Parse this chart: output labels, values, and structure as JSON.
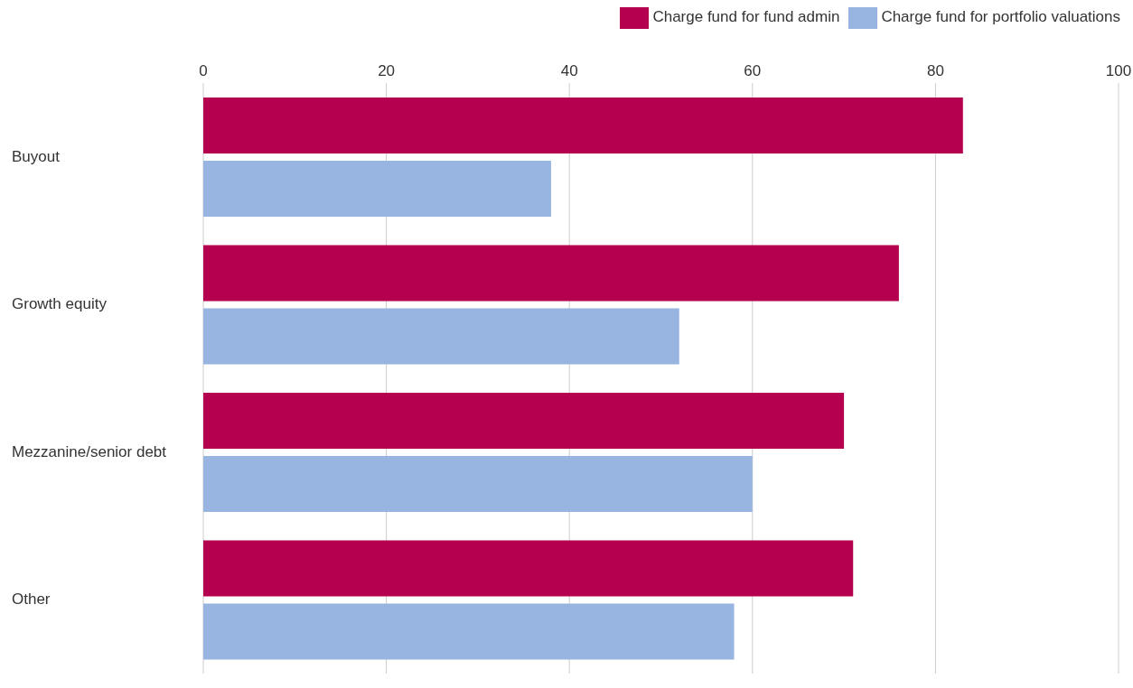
{
  "chart_data": {
    "type": "bar",
    "orientation": "horizontal",
    "categories": [
      "Buyout",
      "Growth equity",
      "Mezzanine/senior debt",
      "Other"
    ],
    "series": [
      {
        "name": "Charge fund for fund admin",
        "color": "#b5004f",
        "values": [
          83,
          76,
          70,
          71
        ]
      },
      {
        "name": "Charge fund for portfolio valuations",
        "color": "#98b4e0",
        "values": [
          38,
          52,
          60,
          58
        ]
      }
    ],
    "xlim": [
      0,
      100
    ],
    "xticks": [
      0,
      20,
      40,
      60,
      80,
      100
    ],
    "grid": "x",
    "legend": "top right"
  }
}
